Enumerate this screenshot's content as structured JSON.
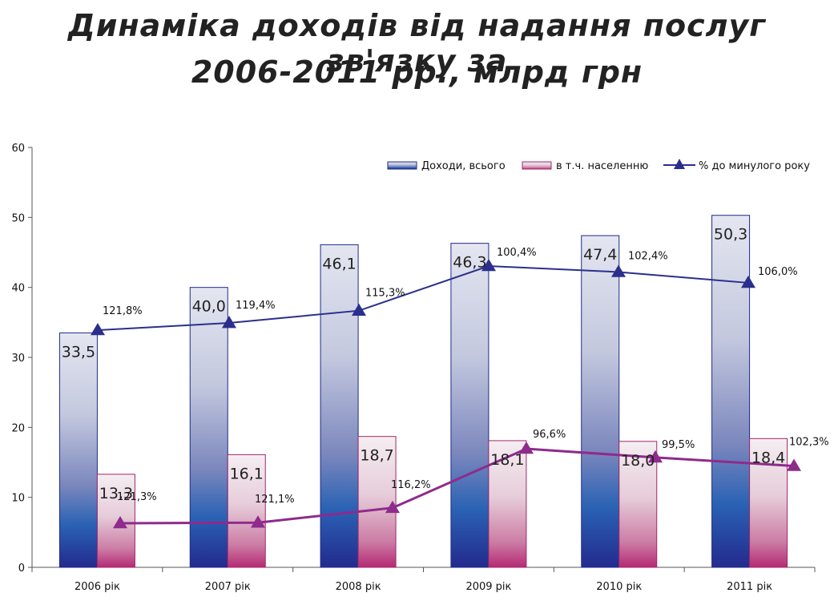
{
  "title_line1": "Динаміка доходів від надання послуг зв'язку за",
  "title_line2": "2006-2011 рр., млрд грн",
  "chart_data": {
    "type": "bar",
    "categories": [
      "2006 рік",
      "2007 рік",
      "2008 рік",
      "2009 рік",
      "2010 рік",
      "2011 рік"
    ],
    "series": [
      {
        "name": "Доходи, всього",
        "values": [
          33.5,
          40.0,
          46.1,
          46.3,
          47.4,
          50.3
        ],
        "labels": [
          "33,5",
          "40,0",
          "46,1",
          "46,3",
          "47,4",
          "50,3"
        ]
      },
      {
        "name": "в т.ч. населенню",
        "values": [
          13.3,
          16.1,
          18.7,
          18.1,
          18.0,
          18.4
        ],
        "labels": [
          "13,3",
          "16,1",
          "18,7",
          "18,1",
          "18,0",
          "18,4"
        ]
      }
    ],
    "lines": [
      {
        "name": "% до минулого року",
        "values": [
          121.8,
          119.4,
          115.3,
          100.4,
          102.4,
          106.0
        ],
        "labels": [
          "121,8%",
          "119,4%",
          "115,3%",
          "100,4%",
          "102,4%",
          "106,0%"
        ],
        "color": "#2b2f8c"
      },
      {
        "name": "",
        "values": [
          121.3,
          121.1,
          116.2,
          96.6,
          99.5,
          102.3
        ],
        "labels": [
          "121,3%",
          "121,1%",
          "116,2%",
          "96,6%",
          "99,5%",
          "102,3%"
        ],
        "color": "#8e2b8c"
      }
    ],
    "ylim": [
      0,
      60
    ],
    "yticks": [
      "0",
      "10",
      "20",
      "30",
      "40",
      "50",
      "60"
    ],
    "legend_position": "top-right",
    "grid": false
  }
}
